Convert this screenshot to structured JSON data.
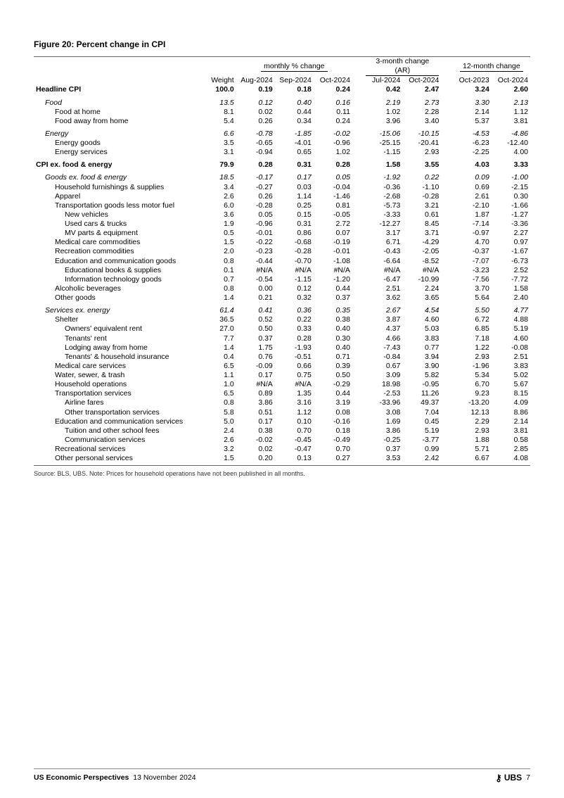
{
  "figure_title": "Figure 20: Percent change in CPI",
  "group_headers": {
    "monthly": "monthly % change",
    "three_month": "3-month change (AR)",
    "twelve_month": "12-month change"
  },
  "columns": {
    "weight": "Weight",
    "m1": "Aug-2024",
    "m2": "Sep-2024",
    "m3": "Oct-2024",
    "t1": "Jul-2024",
    "t2": "Oct-2024",
    "y1": "Oct-2023",
    "y2": "Oct-2024"
  },
  "rows": [
    {
      "label": "Headline CPI",
      "indent": 0,
      "bold": true,
      "ital": false,
      "weight": "100.0",
      "m1": "0.19",
      "m2": "0.18",
      "m3": "0.24",
      "t1": "0.42",
      "t2": "2.47",
      "y1": "3.24",
      "y2": "2.60",
      "gap": false
    },
    {
      "label": "Food",
      "indent": 1,
      "bold": false,
      "ital": true,
      "weight": "13.5",
      "m1": "0.12",
      "m2": "0.40",
      "m3": "0.16",
      "t1": "2.19",
      "t2": "2.73",
      "y1": "3.30",
      "y2": "2.13",
      "gap": true
    },
    {
      "label": "Food at home",
      "indent": 2,
      "bold": false,
      "ital": false,
      "weight": "8.1",
      "m1": "0.02",
      "m2": "0.44",
      "m3": "0.11",
      "t1": "1.02",
      "t2": "2.28",
      "y1": "2.14",
      "y2": "1.12",
      "gap": false
    },
    {
      "label": "Food away from home",
      "indent": 2,
      "bold": false,
      "ital": false,
      "weight": "5.4",
      "m1": "0.26",
      "m2": "0.34",
      "m3": "0.24",
      "t1": "3.96",
      "t2": "3.40",
      "y1": "5.37",
      "y2": "3.81",
      "gap": false
    },
    {
      "label": "Energy",
      "indent": 1,
      "bold": false,
      "ital": true,
      "weight": "6.6",
      "m1": "-0.78",
      "m2": "-1.85",
      "m3": "-0.02",
      "t1": "-15.06",
      "t2": "-10.15",
      "y1": "-4.53",
      "y2": "-4.86",
      "gap": true
    },
    {
      "label": "Energy goods",
      "indent": 2,
      "bold": false,
      "ital": false,
      "weight": "3.5",
      "m1": "-0.65",
      "m2": "-4.01",
      "m3": "-0.96",
      "t1": "-25.15",
      "t2": "-20.41",
      "y1": "-6.23",
      "y2": "-12.40",
      "gap": false
    },
    {
      "label": "Energy services",
      "indent": 2,
      "bold": false,
      "ital": false,
      "weight": "3.1",
      "m1": "-0.94",
      "m2": "0.65",
      "m3": "1.02",
      "t1": "-1.15",
      "t2": "2.93",
      "y1": "-2.25",
      "y2": "4.00",
      "gap": false
    },
    {
      "label": "CPI ex. food & energy",
      "indent": 0,
      "bold": true,
      "ital": false,
      "weight": "79.9",
      "m1": "0.28",
      "m2": "0.31",
      "m3": "0.28",
      "t1": "1.58",
      "t2": "3.55",
      "y1": "4.03",
      "y2": "3.33",
      "gap": true
    },
    {
      "label": "Goods ex. food & energy",
      "indent": 1,
      "bold": false,
      "ital": true,
      "weight": "18.5",
      "m1": "-0.17",
      "m2": "0.17",
      "m3": "0.05",
      "t1": "-1.92",
      "t2": "0.22",
      "y1": "0.09",
      "y2": "-1.00",
      "gap": true
    },
    {
      "label": "Household furnishings & supplies",
      "indent": 2,
      "bold": false,
      "ital": false,
      "weight": "3.4",
      "m1": "-0.27",
      "m2": "0.03",
      "m3": "-0.04",
      "t1": "-0.36",
      "t2": "-1.10",
      "y1": "0.69",
      "y2": "-2.15",
      "gap": false
    },
    {
      "label": "Apparel",
      "indent": 2,
      "bold": false,
      "ital": false,
      "weight": "2.6",
      "m1": "0.26",
      "m2": "1.14",
      "m3": "-1.46",
      "t1": "-2.68",
      "t2": "-0.28",
      "y1": "2.61",
      "y2": "0.30",
      "gap": false
    },
    {
      "label": "Transportation goods less motor fuel",
      "indent": 2,
      "bold": false,
      "ital": false,
      "weight": "6.0",
      "m1": "-0.28",
      "m2": "0.25",
      "m3": "0.81",
      "t1": "-5.73",
      "t2": "3.21",
      "y1": "-2.10",
      "y2": "-1.66",
      "gap": false
    },
    {
      "label": "New vehicles",
      "indent": 3,
      "bold": false,
      "ital": false,
      "weight": "3.6",
      "m1": "0.05",
      "m2": "0.15",
      "m3": "-0.05",
      "t1": "-3.33",
      "t2": "0.61",
      "y1": "1.87",
      "y2": "-1.27",
      "gap": false
    },
    {
      "label": "Used cars & trucks",
      "indent": 3,
      "bold": false,
      "ital": false,
      "weight": "1.9",
      "m1": "-0.96",
      "m2": "0.31",
      "m3": "2.72",
      "t1": "-12.27",
      "t2": "8.45",
      "y1": "-7.14",
      "y2": "-3.36",
      "gap": false
    },
    {
      "label": "MV parts &  equipment",
      "indent": 3,
      "bold": false,
      "ital": false,
      "weight": "0.5",
      "m1": "-0.01",
      "m2": "0.86",
      "m3": "0.07",
      "t1": "3.17",
      "t2": "3.71",
      "y1": "-0.97",
      "y2": "2.27",
      "gap": false
    },
    {
      "label": "Medical care commodities",
      "indent": 2,
      "bold": false,
      "ital": false,
      "weight": "1.5",
      "m1": "-0.22",
      "m2": "-0.68",
      "m3": "-0.19",
      "t1": "6.71",
      "t2": "-4.29",
      "y1": "4.70",
      "y2": "0.97",
      "gap": false
    },
    {
      "label": "Recreation commodities",
      "indent": 2,
      "bold": false,
      "ital": false,
      "weight": "2.0",
      "m1": "-0.23",
      "m2": "-0.28",
      "m3": "-0.01",
      "t1": "-0.43",
      "t2": "-2.05",
      "y1": "-0.37",
      "y2": "-1.67",
      "gap": false
    },
    {
      "label": "Education and communication goods",
      "indent": 2,
      "bold": false,
      "ital": false,
      "weight": "0.8",
      "m1": "-0.44",
      "m2": "-0.70",
      "m3": "-1.08",
      "t1": "-6.64",
      "t2": "-8.52",
      "y1": "-7.07",
      "y2": "-6.73",
      "gap": false
    },
    {
      "label": "Educational books & supplies",
      "indent": 3,
      "bold": false,
      "ital": false,
      "weight": "0.1",
      "m1": "#N/A",
      "m2": "#N/A",
      "m3": "#N/A",
      "t1": "#N/A",
      "t2": "#N/A",
      "y1": "-3.23",
      "y2": "2.52",
      "gap": false
    },
    {
      "label": "Information technology goods",
      "indent": 3,
      "bold": false,
      "ital": false,
      "weight": "0.7",
      "m1": "-0.54",
      "m2": "-1.15",
      "m3": "-1.20",
      "t1": "-6.47",
      "t2": "-10.99",
      "y1": "-7.56",
      "y2": "-7.72",
      "gap": false
    },
    {
      "label": "Alcoholic beverages",
      "indent": 2,
      "bold": false,
      "ital": false,
      "weight": "0.8",
      "m1": "0.00",
      "m2": "0.12",
      "m3": "0.44",
      "t1": "2.51",
      "t2": "2.24",
      "y1": "3.70",
      "y2": "1.58",
      "gap": false
    },
    {
      "label": "Other goods",
      "indent": 2,
      "bold": false,
      "ital": false,
      "weight": "1.4",
      "m1": "0.21",
      "m2": "0.32",
      "m3": "0.37",
      "t1": "3.62",
      "t2": "3.65",
      "y1": "5.64",
      "y2": "2.40",
      "gap": false
    },
    {
      "label": "Services ex. energy",
      "indent": 1,
      "bold": false,
      "ital": true,
      "weight": "61.4",
      "m1": "0.41",
      "m2": "0.36",
      "m3": "0.35",
      "t1": "2.67",
      "t2": "4.54",
      "y1": "5.50",
      "y2": "4.77",
      "gap": true
    },
    {
      "label": "Shelter",
      "indent": 2,
      "bold": false,
      "ital": false,
      "weight": "36.5",
      "m1": "0.52",
      "m2": "0.22",
      "m3": "0.38",
      "t1": "3.87",
      "t2": "4.60",
      "y1": "6.72",
      "y2": "4.88",
      "gap": false
    },
    {
      "label": "Owners' equivalent rent",
      "indent": 3,
      "bold": false,
      "ital": false,
      "weight": "27.0",
      "m1": "0.50",
      "m2": "0.33",
      "m3": "0.40",
      "t1": "4.37",
      "t2": "5.03",
      "y1": "6.85",
      "y2": "5.19",
      "gap": false
    },
    {
      "label": "Tenants' rent",
      "indent": 3,
      "bold": false,
      "ital": false,
      "weight": "7.7",
      "m1": "0.37",
      "m2": "0.28",
      "m3": "0.30",
      "t1": "4.66",
      "t2": "3.83",
      "y1": "7.18",
      "y2": "4.60",
      "gap": false
    },
    {
      "label": "Lodging away from home",
      "indent": 3,
      "bold": false,
      "ital": false,
      "weight": "1.4",
      "m1": "1.75",
      "m2": "-1.93",
      "m3": "0.40",
      "t1": "-7.43",
      "t2": "0.77",
      "y1": "1.22",
      "y2": "-0.08",
      "gap": false
    },
    {
      "label": "Tenants' & household insurance",
      "indent": 3,
      "bold": false,
      "ital": false,
      "weight": "0.4",
      "m1": "0.76",
      "m2": "-0.51",
      "m3": "0.71",
      "t1": "-0.84",
      "t2": "3.94",
      "y1": "2.93",
      "y2": "2.51",
      "gap": false
    },
    {
      "label": "Medical care services",
      "indent": 2,
      "bold": false,
      "ital": false,
      "weight": "6.5",
      "m1": "-0.09",
      "m2": "0.66",
      "m3": "0.39",
      "t1": "0.67",
      "t2": "3.90",
      "y1": "-1.96",
      "y2": "3.83",
      "gap": false
    },
    {
      "label": "Water, sewer, & trash",
      "indent": 2,
      "bold": false,
      "ital": false,
      "weight": "1.1",
      "m1": "0.17",
      "m2": "0.75",
      "m3": "0.50",
      "t1": "3.09",
      "t2": "5.82",
      "y1": "5.34",
      "y2": "5.02",
      "gap": false
    },
    {
      "label": "Household operations",
      "indent": 2,
      "bold": false,
      "ital": false,
      "weight": "1.0",
      "m1": "#N/A",
      "m2": "#N/A",
      "m3": "-0.29",
      "t1": "18.98",
      "t2": "-0.95",
      "y1": "6.70",
      "y2": "5.67",
      "gap": false
    },
    {
      "label": "Transportation services",
      "indent": 2,
      "bold": false,
      "ital": false,
      "weight": "6.5",
      "m1": "0.89",
      "m2": "1.35",
      "m3": "0.44",
      "t1": "-2.53",
      "t2": "11.26",
      "y1": "9.23",
      "y2": "8.15",
      "gap": false
    },
    {
      "label": "Airline fares",
      "indent": 3,
      "bold": false,
      "ital": false,
      "weight": "0.8",
      "m1": "3.86",
      "m2": "3.16",
      "m3": "3.19",
      "t1": "-33.96",
      "t2": "49.37",
      "y1": "-13.20",
      "y2": "4.09",
      "gap": false
    },
    {
      "label": "Other transportation services",
      "indent": 3,
      "bold": false,
      "ital": false,
      "weight": "5.8",
      "m1": "0.51",
      "m2": "1.12",
      "m3": "0.08",
      "t1": "3.08",
      "t2": "7.04",
      "y1": "12.13",
      "y2": "8.86",
      "gap": false
    },
    {
      "label": "Education and communication services",
      "indent": 2,
      "bold": false,
      "ital": false,
      "weight": "5.0",
      "m1": "0.17",
      "m2": "0.10",
      "m3": "-0.16",
      "t1": "1.69",
      "t2": "0.45",
      "y1": "2.29",
      "y2": "2.14",
      "gap": false
    },
    {
      "label": "Tuition and other school fees",
      "indent": 3,
      "bold": false,
      "ital": false,
      "weight": "2.4",
      "m1": "0.38",
      "m2": "0.70",
      "m3": "0.18",
      "t1": "3.86",
      "t2": "5.19",
      "y1": "2.93",
      "y2": "3.81",
      "gap": false
    },
    {
      "label": "Communication services",
      "indent": 3,
      "bold": false,
      "ital": false,
      "weight": "2.6",
      "m1": "-0.02",
      "m2": "-0.45",
      "m3": "-0.49",
      "t1": "-0.25",
      "t2": "-3.77",
      "y1": "1.88",
      "y2": "0.58",
      "gap": false
    },
    {
      "label": "Recreational services",
      "indent": 2,
      "bold": false,
      "ital": false,
      "weight": "3.2",
      "m1": "0.02",
      "m2": "-0.47",
      "m3": "0.70",
      "t1": "0.37",
      "t2": "0.99",
      "y1": "5.71",
      "y2": "2.85",
      "gap": false
    },
    {
      "label": "Other personal services",
      "indent": 2,
      "bold": false,
      "ital": false,
      "weight": "1.5",
      "m1": "0.20",
      "m2": "0.13",
      "m3": "0.27",
      "t1": "3.53",
      "t2": "2.42",
      "y1": "6.67",
      "y2": "4.08",
      "gap": false
    }
  ],
  "source_note": "Source: BLS, UBS. Note: Prices for household operations have not been published in all months.",
  "footer": {
    "publication": "US Economic Perspectives",
    "date": "13 November 2024",
    "brand": "UBS",
    "page": "7"
  },
  "colwidths": [
    "230",
    "52",
    "54",
    "54",
    "54",
    "16",
    "54",
    "54",
    "16",
    "54",
    "54"
  ]
}
